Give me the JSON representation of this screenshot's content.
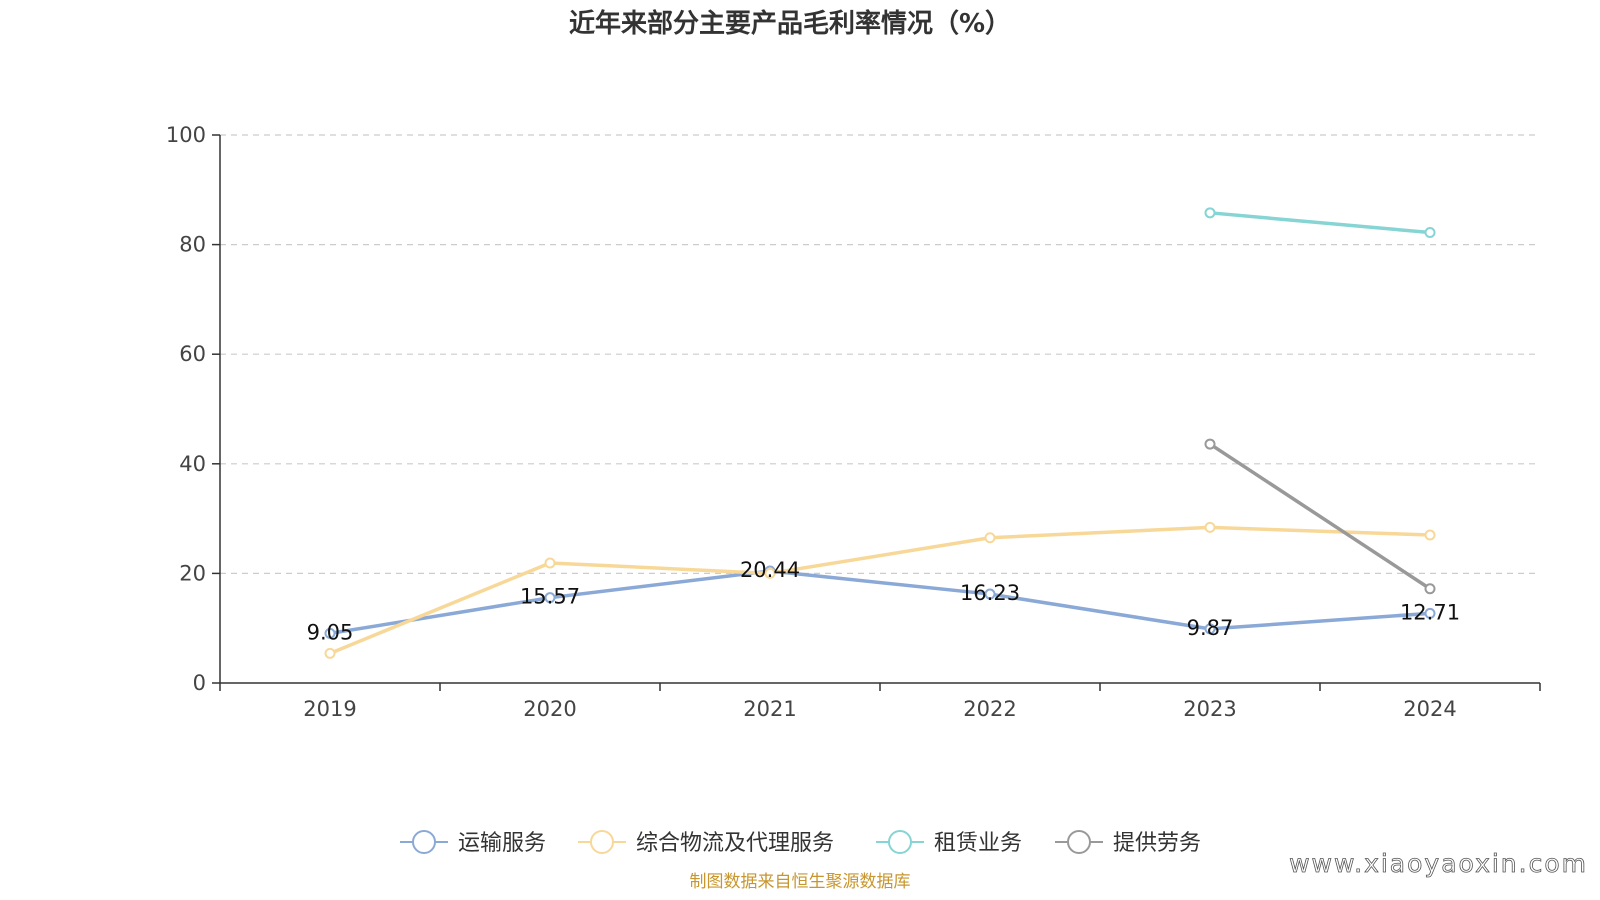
{
  "chart_data": {
    "type": "line",
    "title": "近年来部分主要产品毛利率情况（%）",
    "xlabel": "",
    "ylabel": "",
    "categories": [
      "2019",
      "2020",
      "2021",
      "2022",
      "2023",
      "2024"
    ],
    "ylim": [
      0,
      100
    ],
    "yticks": [
      "0",
      "20",
      "40",
      "60",
      "80",
      "100"
    ],
    "grid": true,
    "legend_position": "bottom",
    "series": [
      {
        "name": "运输服务",
        "color": "#8aa9d6",
        "values": [
          9.05,
          15.57,
          20.44,
          16.23,
          9.87,
          12.71
        ],
        "labels": [
          "9.05",
          "15.57",
          "20.44",
          "16.23",
          "9.87",
          "12.71"
        ]
      },
      {
        "name": "综合物流及代理服务",
        "color": "#f8d898",
        "values": [
          5.4,
          21.9,
          20.0,
          26.5,
          28.4,
          27.0
        ]
      },
      {
        "name": "租赁业务",
        "color": "#86d4d4",
        "values": [
          null,
          null,
          null,
          null,
          85.8,
          82.2
        ]
      },
      {
        "name": "提供劳务",
        "color": "#999999",
        "values": [
          null,
          null,
          null,
          null,
          43.6,
          17.2
        ]
      }
    ]
  },
  "footer": {
    "source": "制图数据来自恒生聚源数据库",
    "watermark": "www.xiaoyaoxin.com"
  }
}
